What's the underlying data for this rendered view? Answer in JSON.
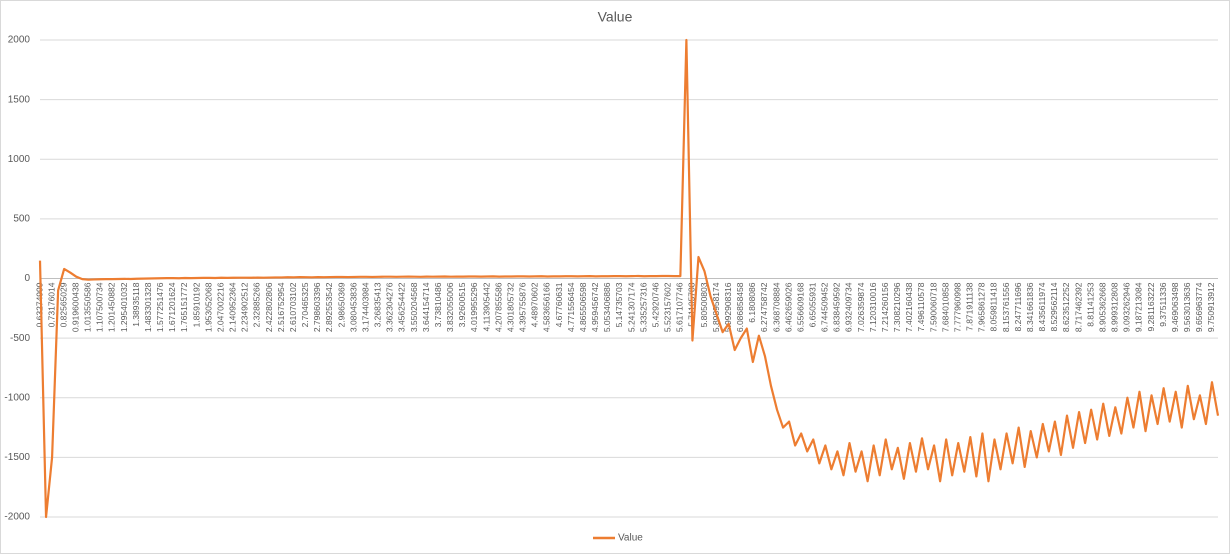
{
  "chart_data": {
    "type": "line",
    "title": "Value",
    "categories": [
      "0.63274999",
      null,
      "0.73176014",
      null,
      "0.82565029",
      null,
      "0.919600438",
      null,
      "1.013550586",
      null,
      "1.107500734",
      null,
      "1.201450882",
      null,
      "1.295401032",
      null,
      "1.38935118",
      null,
      "1.483301328",
      null,
      "1.577251476",
      null,
      "1.671201624",
      null,
      "1.765151772",
      null,
      "1.85910192",
      null,
      "1.953052068",
      null,
      "2.047002216",
      null,
      "2.140952364",
      null,
      "2.234902512",
      null,
      "2.32885266",
      null,
      "2.422802806",
      null,
      "2.516752954",
      null,
      "2.610703102",
      null,
      "2.70465325",
      null,
      "2.798603396",
      null,
      "2.892553542",
      null,
      "2.98650369",
      null,
      "3.080453836",
      null,
      "3.174403984",
      null,
      "3.26835413",
      null,
      "3.362304276",
      null,
      "3.456254422",
      null,
      "3.550204568",
      null,
      "3.644154714",
      null,
      "3.73810486",
      null,
      "3.832055006",
      null,
      "3.92600515",
      null,
      "4.019955296",
      null,
      "4.113905442",
      null,
      "4.207855586",
      null,
      "4.301805732",
      null,
      "4.395755876",
      null,
      "4.48970602",
      null,
      "4.583656166",
      null,
      "4.67760631",
      null,
      "4.771556454",
      null,
      "4.865506598",
      null,
      "4.959456742",
      null,
      "5.053406886",
      null,
      "5.14735703",
      null,
      "5.241307174",
      null,
      "5.335257316",
      null,
      "5.42920746",
      null,
      "5.523157602",
      null,
      "5.617107746",
      null,
      "5.71105788",
      null,
      "5.80500803",
      null,
      "5.898958174",
      null,
      "5.992908316",
      null,
      "6.086858458",
      null,
      "6.1808086",
      null,
      "6.274758742",
      null,
      "6.368708884",
      null,
      "6.462659026",
      null,
      "6.556609168",
      null,
      "6.65055931",
      null,
      "6.744509452",
      null,
      "6.838459592",
      null,
      "6.932409734",
      null,
      "7.026359874",
      null,
      "7.120310016",
      null,
      "7.214260156",
      null,
      "7.308210296",
      null,
      "7.402160438",
      null,
      "7.496110578",
      null,
      "7.590060718",
      null,
      "7.684010858",
      null,
      "7.777960998",
      null,
      "7.871911138",
      null,
      "7.965861278",
      null,
      "8.059811418",
      null,
      "8.153761556",
      null,
      "8.247711696",
      null,
      "8.341661836",
      null,
      "8.435611974",
      null,
      "8.529562114",
      null,
      "8.623512252",
      null,
      "8.717462392",
      null,
      "8.81141253",
      null,
      "8.905362668",
      null,
      "8.999312808",
      null,
      "9.093262946",
      null,
      "9.187213084",
      null,
      "9.281163222",
      null,
      "9.37511336",
      null,
      "9.469063498",
      null,
      "9.563013636",
      null,
      "9.656963774",
      null,
      "9.750913912",
      null
    ],
    "series": [
      {
        "name": "Value",
        "color": "#ed7d31",
        "values": [
          150,
          -2000,
          -1500,
          -100,
          80,
          50,
          15,
          -5,
          -10,
          -8,
          -6,
          -5,
          -5,
          -4,
          -3,
          -4,
          -2,
          -1,
          0,
          1,
          2,
          3,
          3,
          2,
          4,
          3,
          4,
          5,
          5,
          4,
          6,
          5,
          6,
          7,
          7,
          6,
          8,
          7,
          8,
          9,
          9,
          11,
          10,
          12,
          11,
          10,
          12,
          11,
          12,
          13,
          13,
          12,
          13,
          14,
          14,
          13,
          14,
          15,
          15,
          14,
          15,
          16,
          15,
          14,
          16,
          15,
          16,
          17,
          15,
          16,
          16,
          17,
          17,
          16,
          17,
          18,
          16,
          17,
          17,
          18,
          18,
          17,
          18,
          19,
          17,
          18,
          18,
          19,
          19,
          18,
          19,
          20,
          18,
          19,
          19,
          20,
          20,
          19,
          20,
          21,
          19,
          20,
          20,
          21,
          21,
          20,
          20,
          2000,
          -520,
          180,
          60,
          -150,
          -300,
          -450,
          -380,
          -600,
          -500,
          -420,
          -700,
          -480,
          -650,
          -900,
          -1100,
          -1250,
          -1200,
          -1400,
          -1300,
          -1450,
          -1350,
          -1550,
          -1400,
          -1600,
          -1450,
          -1650,
          -1380,
          -1620,
          -1450,
          -1700,
          -1400,
          -1650,
          -1350,
          -1600,
          -1420,
          -1680,
          -1380,
          -1620,
          -1340,
          -1600,
          -1400,
          -1700,
          -1350,
          -1650,
          -1380,
          -1620,
          -1330,
          -1660,
          -1300,
          -1700,
          -1350,
          -1600,
          -1300,
          -1550,
          -1250,
          -1580,
          -1280,
          -1500,
          -1220,
          -1450,
          -1200,
          -1480,
          -1150,
          -1420,
          -1120,
          -1380,
          -1100,
          -1350,
          -1050,
          -1320,
          -1080,
          -1300,
          -1000,
          -1250,
          -950,
          -1280,
          -980,
          -1220,
          -920,
          -1200,
          -950,
          -1250,
          -900,
          -1180,
          -980,
          -1220,
          -870,
          -1150
        ]
      }
    ],
    "ylim": [
      -2000,
      2000
    ],
    "yticks": [
      -2000,
      -1500,
      -1000,
      -500,
      0,
      500,
      1000,
      1500,
      2000
    ],
    "grid": true,
    "legend": "bottom"
  }
}
